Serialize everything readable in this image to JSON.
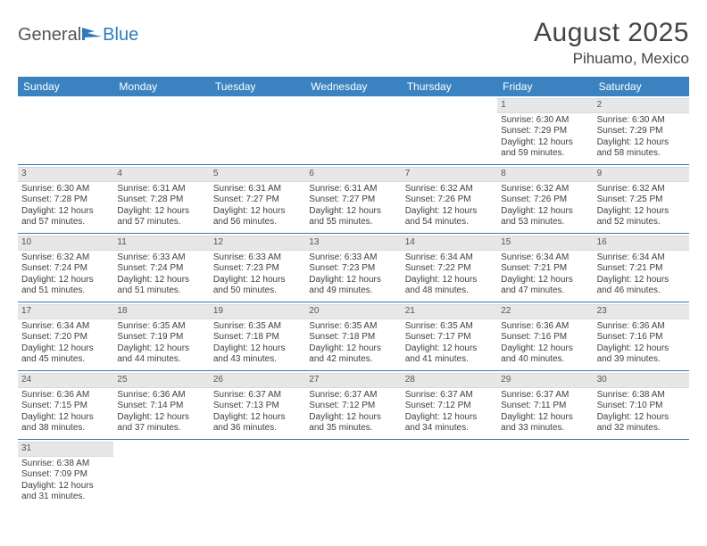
{
  "logo": {
    "text1": "General",
    "text2": "Blue",
    "icon_fill": "#2f7abf"
  },
  "title": "August 2025",
  "location": "Pihuamo, Mexico",
  "colors": {
    "header_bg": "#3b83c0",
    "row_sep": "#2f7abf",
    "band_bg": "#e7e7e7",
    "text": "#404040"
  },
  "day_names": [
    "Sunday",
    "Monday",
    "Tuesday",
    "Wednesday",
    "Thursday",
    "Friday",
    "Saturday"
  ],
  "weeks": [
    [
      null,
      null,
      null,
      null,
      null,
      {
        "n": "1",
        "sr": "6:30 AM",
        "ss": "7:29 PM",
        "dh": "12",
        "dm": "59"
      },
      {
        "n": "2",
        "sr": "6:30 AM",
        "ss": "7:29 PM",
        "dh": "12",
        "dm": "58"
      }
    ],
    [
      {
        "n": "3",
        "sr": "6:30 AM",
        "ss": "7:28 PM",
        "dh": "12",
        "dm": "57"
      },
      {
        "n": "4",
        "sr": "6:31 AM",
        "ss": "7:28 PM",
        "dh": "12",
        "dm": "57"
      },
      {
        "n": "5",
        "sr": "6:31 AM",
        "ss": "7:27 PM",
        "dh": "12",
        "dm": "56"
      },
      {
        "n": "6",
        "sr": "6:31 AM",
        "ss": "7:27 PM",
        "dh": "12",
        "dm": "55"
      },
      {
        "n": "7",
        "sr": "6:32 AM",
        "ss": "7:26 PM",
        "dh": "12",
        "dm": "54"
      },
      {
        "n": "8",
        "sr": "6:32 AM",
        "ss": "7:26 PM",
        "dh": "12",
        "dm": "53"
      },
      {
        "n": "9",
        "sr": "6:32 AM",
        "ss": "7:25 PM",
        "dh": "12",
        "dm": "52"
      }
    ],
    [
      {
        "n": "10",
        "sr": "6:32 AM",
        "ss": "7:24 PM",
        "dh": "12",
        "dm": "51"
      },
      {
        "n": "11",
        "sr": "6:33 AM",
        "ss": "7:24 PM",
        "dh": "12",
        "dm": "51"
      },
      {
        "n": "12",
        "sr": "6:33 AM",
        "ss": "7:23 PM",
        "dh": "12",
        "dm": "50"
      },
      {
        "n": "13",
        "sr": "6:33 AM",
        "ss": "7:23 PM",
        "dh": "12",
        "dm": "49"
      },
      {
        "n": "14",
        "sr": "6:34 AM",
        "ss": "7:22 PM",
        "dh": "12",
        "dm": "48"
      },
      {
        "n": "15",
        "sr": "6:34 AM",
        "ss": "7:21 PM",
        "dh": "12",
        "dm": "47"
      },
      {
        "n": "16",
        "sr": "6:34 AM",
        "ss": "7:21 PM",
        "dh": "12",
        "dm": "46"
      }
    ],
    [
      {
        "n": "17",
        "sr": "6:34 AM",
        "ss": "7:20 PM",
        "dh": "12",
        "dm": "45"
      },
      {
        "n": "18",
        "sr": "6:35 AM",
        "ss": "7:19 PM",
        "dh": "12",
        "dm": "44"
      },
      {
        "n": "19",
        "sr": "6:35 AM",
        "ss": "7:18 PM",
        "dh": "12",
        "dm": "43"
      },
      {
        "n": "20",
        "sr": "6:35 AM",
        "ss": "7:18 PM",
        "dh": "12",
        "dm": "42"
      },
      {
        "n": "21",
        "sr": "6:35 AM",
        "ss": "7:17 PM",
        "dh": "12",
        "dm": "41"
      },
      {
        "n": "22",
        "sr": "6:36 AM",
        "ss": "7:16 PM",
        "dh": "12",
        "dm": "40"
      },
      {
        "n": "23",
        "sr": "6:36 AM",
        "ss": "7:16 PM",
        "dh": "12",
        "dm": "39"
      }
    ],
    [
      {
        "n": "24",
        "sr": "6:36 AM",
        "ss": "7:15 PM",
        "dh": "12",
        "dm": "38"
      },
      {
        "n": "25",
        "sr": "6:36 AM",
        "ss": "7:14 PM",
        "dh": "12",
        "dm": "37"
      },
      {
        "n": "26",
        "sr": "6:37 AM",
        "ss": "7:13 PM",
        "dh": "12",
        "dm": "36"
      },
      {
        "n": "27",
        "sr": "6:37 AM",
        "ss": "7:12 PM",
        "dh": "12",
        "dm": "35"
      },
      {
        "n": "28",
        "sr": "6:37 AM",
        "ss": "7:12 PM",
        "dh": "12",
        "dm": "34"
      },
      {
        "n": "29",
        "sr": "6:37 AM",
        "ss": "7:11 PM",
        "dh": "12",
        "dm": "33"
      },
      {
        "n": "30",
        "sr": "6:38 AM",
        "ss": "7:10 PM",
        "dh": "12",
        "dm": "32"
      }
    ],
    [
      {
        "n": "31",
        "sr": "6:38 AM",
        "ss": "7:09 PM",
        "dh": "12",
        "dm": "31"
      },
      null,
      null,
      null,
      null,
      null,
      null
    ]
  ],
  "labels": {
    "sunrise": "Sunrise: ",
    "sunset": "Sunset: ",
    "daylight_pre": "Daylight: ",
    "daylight_hours": " hours",
    "daylight_and": "and ",
    "daylight_min": " minutes."
  }
}
